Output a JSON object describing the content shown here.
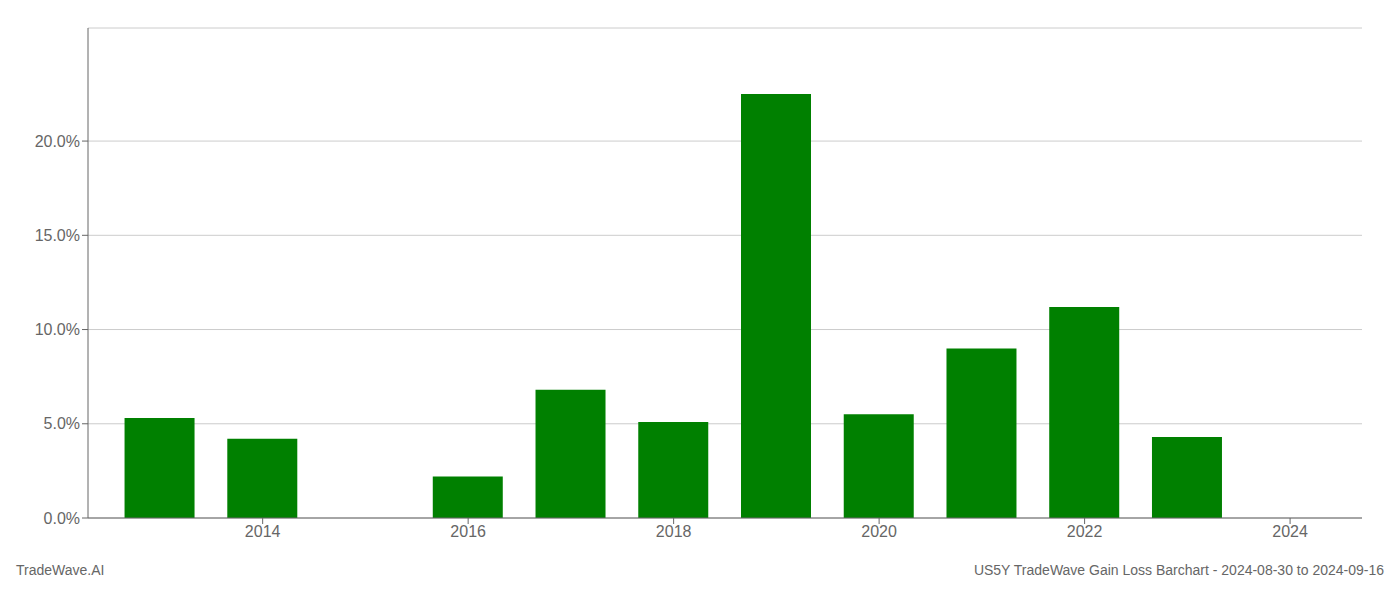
{
  "chart_data": {
    "type": "bar",
    "title": "US5Y TradeWave Gain Loss Barchart - 2024-08-30 to 2024-09-16",
    "annotations": [
      "TradeWave.AI"
    ],
    "x": [
      2013,
      2014,
      2016,
      2017,
      2018,
      2019,
      2020,
      2021,
      2022,
      2023
    ],
    "values": [
      0.053,
      0.042,
      0.022,
      0.068,
      0.051,
      0.225,
      0.055,
      0.09,
      0.112,
      0.043
    ],
    "color": "#008000",
    "xlim": [
      2012.3,
      2024.7
    ],
    "xticks": [
      2014,
      2016,
      2018,
      2020,
      2022,
      2024
    ],
    "ylim": [
      0,
      0.26
    ],
    "yticks": [
      {
        "value": 0.0,
        "label": "0.0%"
      },
      {
        "value": 0.05,
        "label": "5.0%"
      },
      {
        "value": 0.1,
        "label": "10.0%"
      },
      {
        "value": 0.15,
        "label": "15.0%"
      },
      {
        "value": 0.2,
        "label": "20.0%"
      }
    ],
    "grid": true
  }
}
